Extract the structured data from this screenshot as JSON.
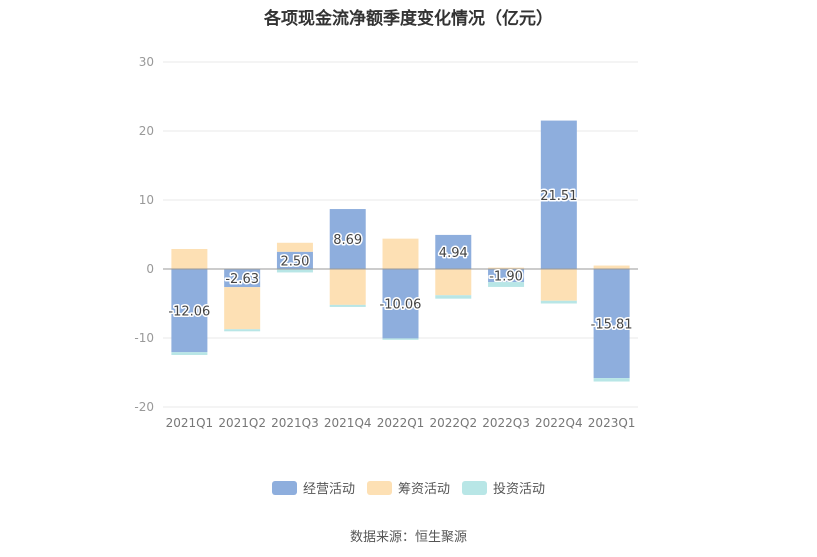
{
  "chart_data": {
    "type": "bar",
    "stacked": true,
    "title": "各项现金流净额季度变化情况（亿元）",
    "categories": [
      "2021Q1",
      "2021Q2",
      "2021Q3",
      "2021Q4",
      "2022Q1",
      "2022Q2",
      "2022Q3",
      "2022Q4",
      "2023Q1"
    ],
    "ylim": [
      -20,
      30
    ],
    "yticks": [
      -20,
      -10,
      0,
      10,
      20,
      30
    ],
    "grid": true,
    "legend_position": "bottom",
    "series": [
      {
        "name": "经营活动",
        "color": "#8eaedd",
        "values": [
          -12.06,
          -2.63,
          2.5,
          8.69,
          -10.06,
          4.94,
          -1.9,
          21.51,
          -15.81
        ],
        "show_labels": true
      },
      {
        "name": "筹资活动",
        "color": "#fde0b4",
        "values": [
          2.9,
          -6.1,
          1.3,
          -5.2,
          4.4,
          -3.8,
          0.2,
          -4.6,
          0.5
        ],
        "show_labels": false
      },
      {
        "name": "投资活动",
        "color": "#b8e6e6",
        "values": [
          -0.4,
          -0.3,
          -0.5,
          -0.3,
          -0.2,
          -0.5,
          -0.7,
          -0.4,
          -0.5
        ],
        "show_labels": false
      }
    ],
    "data_labels": [
      "-12.06",
      "-2.63",
      "2.50",
      "8.69",
      "-10.06",
      "4.94",
      "-1.90",
      "21.51",
      "-15.81"
    ],
    "source": "数据来源：恒生聚源"
  }
}
